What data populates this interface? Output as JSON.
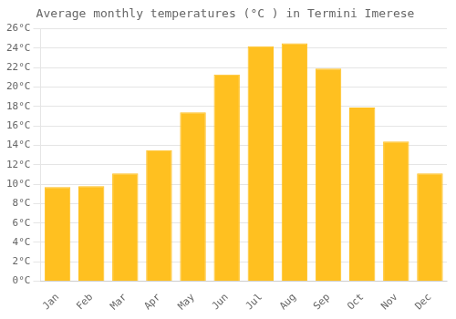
{
  "chart_data": {
    "type": "bar",
    "title": "Average monthly temperatures (°C ) in Termini Imerese",
    "categories": [
      "Jan",
      "Feb",
      "Mar",
      "Apr",
      "May",
      "Jun",
      "Jul",
      "Aug",
      "Sep",
      "Oct",
      "Nov",
      "Dec"
    ],
    "values": [
      9.7,
      9.8,
      11.1,
      13.5,
      17.4,
      21.3,
      24.2,
      24.5,
      21.9,
      17.9,
      14.4,
      11.1
    ],
    "color": "#FFC020",
    "ylim": [
      0,
      26
    ],
    "yticks": [
      {
        "value": 0,
        "label": "0°C"
      },
      {
        "value": 2,
        "label": "2°C"
      },
      {
        "value": 4,
        "label": "4°C"
      },
      {
        "value": 6,
        "label": "6°C"
      },
      {
        "value": 8,
        "label": "8°C"
      },
      {
        "value": 10,
        "label": "10°C"
      },
      {
        "value": 12,
        "label": "12°C"
      },
      {
        "value": 14,
        "label": "14°C"
      },
      {
        "value": 16,
        "label": "16°C"
      },
      {
        "value": 18,
        "label": "18°C"
      },
      {
        "value": 20,
        "label": "20°C"
      },
      {
        "value": 22,
        "label": "22°C"
      },
      {
        "value": 24,
        "label": "24°C"
      },
      {
        "value": 26,
        "label": "26°C"
      }
    ],
    "grid": true
  }
}
